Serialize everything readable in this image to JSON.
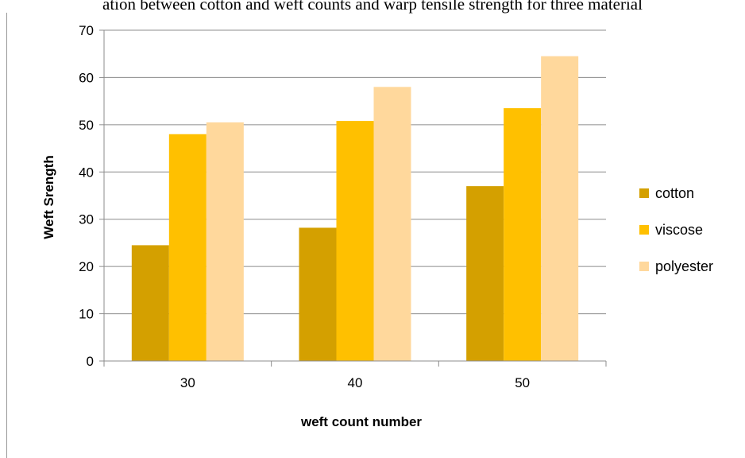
{
  "caption": "ation between cotton and weft counts and warp tensile strength for three material",
  "chart_data": {
    "type": "bar",
    "title": "",
    "xlabel": "weft count number",
    "ylabel": "Weft Srength",
    "categories": [
      "30",
      "40",
      "50"
    ],
    "ylim": [
      0,
      70
    ],
    "yticks": [
      0,
      10,
      20,
      30,
      40,
      50,
      60,
      70
    ],
    "grid": true,
    "legend_position": "right",
    "series": [
      {
        "name": "cotton",
        "color": "#D4A000",
        "values": [
          24.5,
          28.2,
          37.0
        ]
      },
      {
        "name": "viscose",
        "color": "#FFC000",
        "values": [
          48.0,
          50.8,
          53.5
        ]
      },
      {
        "name": "polyester",
        "color": "#FFD89C",
        "values": [
          50.5,
          58.0,
          64.5
        ]
      }
    ]
  }
}
